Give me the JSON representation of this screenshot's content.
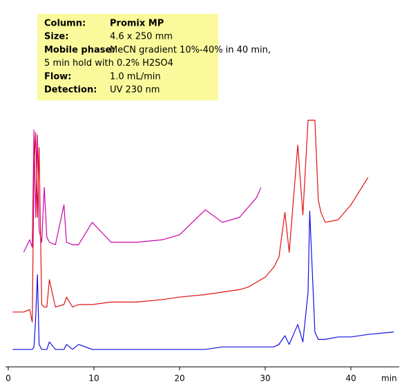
{
  "chart_data": {
    "type": "line",
    "annotations": [
      {
        "label": "Column:",
        "text": "Promix MP"
      },
      {
        "label": "Size:",
        "text": "4.6 x 250 mm"
      },
      {
        "label": "Mobile phase:",
        "text": "MeCN gradient 10%-40% in 40 min,"
      },
      {
        "text": "5 min hold  with 0.2% H2SO4"
      },
      {
        "label": "Flow:",
        "text": "1.0 mL/min"
      },
      {
        "label": "Detection:",
        "text": "UV 230 nm"
      }
    ],
    "xlabel": "min",
    "xlim": [
      0,
      45.6
    ],
    "xticks": [
      0,
      10,
      20,
      30,
      40
    ],
    "ylim": [
      0,
      100
    ],
    "x": [
      0.5,
      1.8,
      2.5,
      2.8,
      3.0,
      3.2,
      3.4,
      3.6,
      3.9,
      4.2,
      4.5,
      4.8,
      5.5,
      6.5,
      6.8,
      7.5,
      8.2,
      9.8,
      12,
      15,
      18,
      20,
      23,
      25,
      27,
      28,
      29,
      29.5,
      30,
      31,
      31.6,
      32.3,
      32.8,
      33.8,
      34.4,
      35,
      35.2,
      35.8,
      36.2,
      36.5,
      37,
      38.5,
      40,
      42,
      45
    ],
    "series": [
      {
        "color": "#cc00aa",
        "values": [
          null,
          46,
          51,
          48,
          95,
          60,
          93,
          55,
          50,
          72,
          52,
          50,
          49,
          65,
          50,
          49,
          49,
          58,
          50,
          50,
          51,
          53,
          63,
          58,
          60,
          64,
          68,
          72,
          null,
          null,
          null,
          null,
          null,
          null,
          null,
          null,
          null,
          null,
          null,
          null,
          null,
          null,
          null,
          null,
          null
        ]
      },
      {
        "color": "#e01010",
        "values": [
          22,
          22,
          23,
          18,
          80,
          94,
          60,
          88,
          25,
          24,
          24,
          35,
          24,
          25,
          28,
          24,
          25,
          25,
          26,
          26,
          27,
          28,
          29,
          30,
          31,
          32,
          34,
          35,
          36,
          40,
          44,
          62,
          46,
          89,
          61,
          99,
          99,
          99,
          67,
          62,
          58,
          59,
          65,
          76,
          null
        ]
      },
      {
        "color": "#1010e0",
        "values": [
          7,
          7,
          7,
          7,
          8,
          20,
          37,
          9,
          7,
          7,
          7,
          10,
          7,
          7,
          9,
          7,
          9,
          7,
          7,
          7,
          7,
          7,
          7,
          8,
          8,
          8,
          8,
          8,
          8,
          8,
          9,
          12.5,
          9,
          17,
          10,
          30,
          62.5,
          14,
          11,
          11,
          11,
          12,
          12,
          13,
          14
        ]
      }
    ]
  }
}
